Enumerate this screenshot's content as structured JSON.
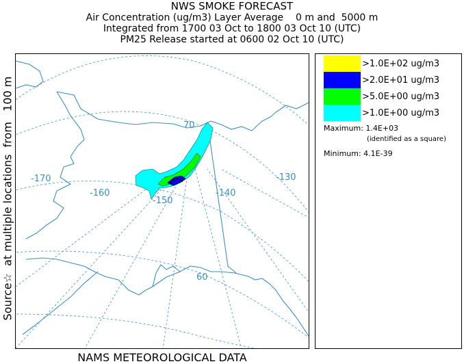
{
  "title": {
    "main": "NWS SMOKE FORECAST",
    "line2": "Air Concentration (ug/m3) Layer Average    0 m and  5000 m",
    "line3": "Integrated from 1700 03 Oct to 1800 03 Oct 10 (UTC)",
    "line4": "PM25 Release started at 0600 02 Oct 10 (UTC)"
  },
  "side_label": "Source☆  at multiple locations  from   100 m",
  "footer": "NAMS METEOROLOGICAL DATA",
  "map": {
    "longitude_labels": [
      "-170",
      "-160",
      "-150",
      "-140",
      "-130"
    ],
    "latitude_labels": [
      "70",
      "60"
    ],
    "colors": {
      "coast": "#3a8fc6",
      "grid": "#4a9fd0",
      "label": "#3a8fc6"
    }
  },
  "legend": {
    "items": [
      {
        "label": ">1.0E+02 ug/m3",
        "color": "#ffff00"
      },
      {
        "label": ">2.0E+01 ug/m3",
        "color": "#0000ff"
      },
      {
        "label": ">5.0E+00 ug/m3",
        "color": "#00ff00"
      },
      {
        "label": ">1.0E+00 ug/m3",
        "color": "#00ffff"
      }
    ],
    "maximum": "Maximum: 1.4E+03",
    "maximum_note": "(identified as a square)",
    "minimum": "Minimum: 4.1E-39"
  }
}
